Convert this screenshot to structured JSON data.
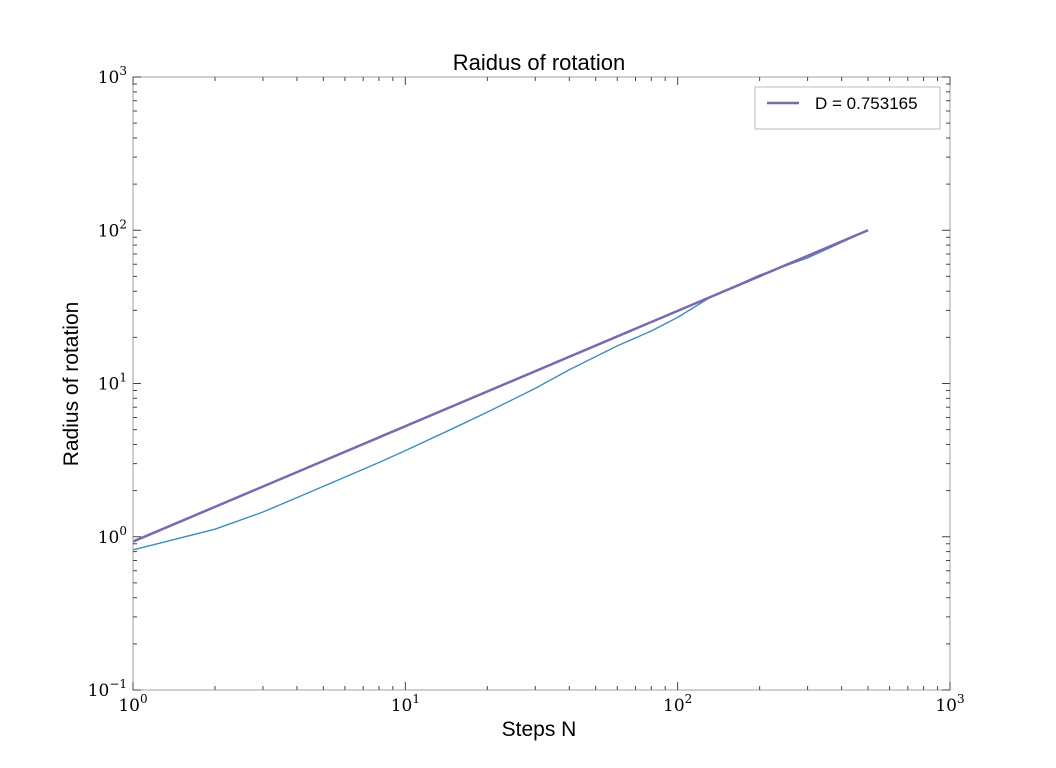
{
  "chart_data": {
    "type": "line",
    "title": "Raidus of rotation",
    "xlabel": "Steps N",
    "ylabel": "Radius of rotation",
    "xscale": "log",
    "yscale": "log",
    "xlim": [
      1,
      1000
    ],
    "ylim": [
      0.1,
      1000
    ],
    "xticks": [
      {
        "base": "10",
        "exp": "0",
        "value": 1
      },
      {
        "base": "10",
        "exp": "1",
        "value": 10
      },
      {
        "base": "10",
        "exp": "2",
        "value": 100
      },
      {
        "base": "10",
        "exp": "3",
        "value": 1000
      }
    ],
    "yticks": [
      {
        "base": "10",
        "exp": "−1",
        "value": 0.1
      },
      {
        "base": "10",
        "exp": "0",
        "value": 1
      },
      {
        "base": "10",
        "exp": "1",
        "value": 10
      },
      {
        "base": "10",
        "exp": "2",
        "value": 100
      },
      {
        "base": "10",
        "exp": "3",
        "value": 1000
      }
    ],
    "grid": false,
    "legend_position": "top-right",
    "series": [
      {
        "color": "#3a8fc0",
        "x": [
          1,
          2,
          3,
          4,
          6,
          8,
          10,
          15,
          20,
          30,
          40,
          60,
          80,
          100,
          130,
          200,
          300,
          500
        ],
        "y": [
          0.82,
          1.12,
          1.45,
          1.8,
          2.45,
          3.05,
          3.65,
          5.1,
          6.5,
          9.3,
          12.3,
          17.6,
          22.0,
          27.0,
          36.0,
          51.0,
          66.0,
          100.0
        ]
      },
      {
        "name": "D = 0.753165",
        "color": "#7b68ae",
        "x": [
          1,
          500
        ],
        "y": [
          0.93,
          100.0
        ]
      }
    ]
  }
}
